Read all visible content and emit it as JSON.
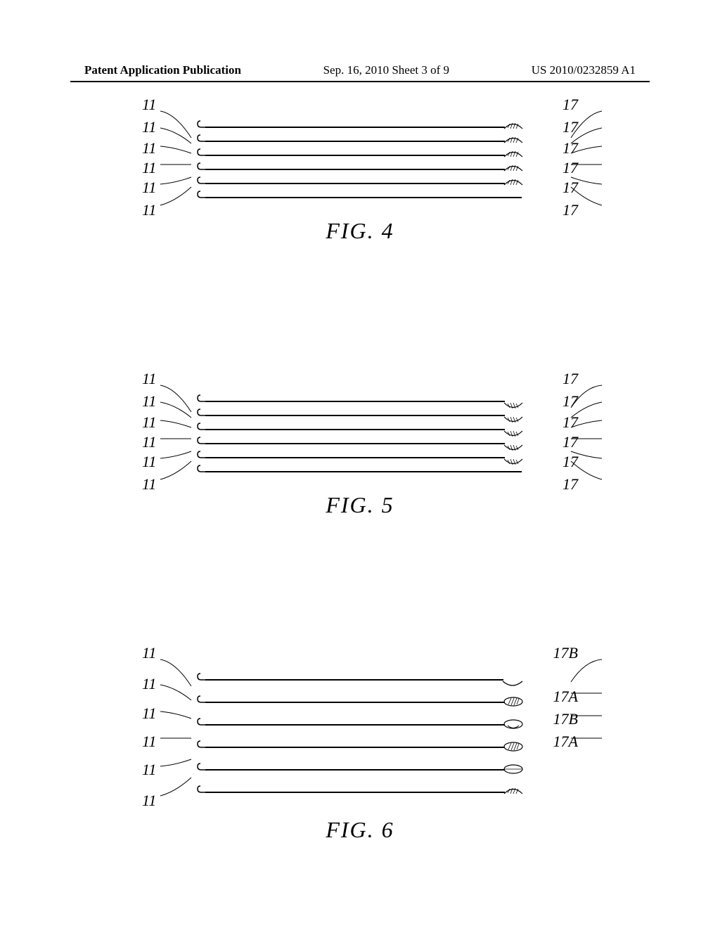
{
  "header": {
    "left": "Patent Application Publication",
    "mid": "Sep. 16, 2010  Sheet 3 of 9",
    "right": "US 2010/0232859 A1"
  },
  "figures": [
    {
      "id": "fig4",
      "caption": "FIG. 4",
      "rows": [
        {
          "left_label": "11",
          "right_label": "17",
          "left_end": "hook-up",
          "right_end": "hatch-up",
          "left_lead": "down-deep",
          "right_lead": "down-deep"
        },
        {
          "left_label": "11",
          "right_label": "17",
          "left_end": "hook-up",
          "right_end": "hatch-up",
          "left_lead": "down",
          "right_lead": "down"
        },
        {
          "left_label": "11",
          "right_label": "17",
          "left_end": "hook-up",
          "right_end": "hatch-up",
          "left_lead": "down-short",
          "right_lead": "down-short"
        },
        {
          "left_label": "11",
          "right_label": "17",
          "left_end": "hook-up",
          "right_end": "hatch-up",
          "left_lead": "flat",
          "right_lead": "flat"
        },
        {
          "left_label": "11",
          "right_label": "17",
          "left_end": "hook-up",
          "right_end": "hatch-up",
          "left_lead": "up-short",
          "right_lead": "up-short"
        },
        {
          "left_label": "11",
          "right_label": "17",
          "left_end": "hook-up",
          "right_end": "none",
          "left_lead": "up",
          "right_lead": "up"
        }
      ],
      "spacing": 20
    },
    {
      "id": "fig5",
      "caption": "FIG. 5",
      "rows": [
        {
          "left_label": "11",
          "right_label": "17",
          "left_end": "hook-up",
          "right_end": "hatch-down",
          "left_lead": "down-deep",
          "right_lead": "down-deep-r"
        },
        {
          "left_label": "11",
          "right_label": "17",
          "left_end": "hook-up",
          "right_end": "hatch-down",
          "left_lead": "down",
          "right_lead": "down"
        },
        {
          "left_label": "11",
          "right_label": "17",
          "left_end": "hook-up",
          "right_end": "hatch-down",
          "left_lead": "down-short",
          "right_lead": "down-short"
        },
        {
          "left_label": "11",
          "right_label": "17",
          "left_end": "hook-up",
          "right_end": "hatch-down",
          "left_lead": "flat",
          "right_lead": "flat"
        },
        {
          "left_label": "11",
          "right_label": "17",
          "left_end": "hook-up",
          "right_end": "hatch-down",
          "left_lead": "up-short",
          "right_lead": "up-short"
        },
        {
          "left_label": "11",
          "right_label": "17",
          "left_end": "hook-up",
          "right_end": "none",
          "left_lead": "up",
          "right_lead": "up"
        }
      ],
      "spacing": 20
    },
    {
      "id": "fig6",
      "caption": "FIG. 6",
      "rows": [
        {
          "left_label": "11",
          "right_label": "17B",
          "left_end": "hook-up",
          "right_end": "cup-down",
          "left_lead": "down-deep",
          "right_lead": "down-deep-r"
        },
        {
          "left_label": "11",
          "right_label": "17A",
          "left_end": "hook-up",
          "right_end": "ellipse-hatch",
          "left_lead": "down",
          "right_lead": "flat"
        },
        {
          "left_label": "11",
          "right_label": "17B",
          "left_end": "hook-up",
          "right_end": "ellipse-cup",
          "left_lead": "down-short",
          "right_lead": "flat"
        },
        {
          "left_label": "11",
          "right_label": "17A",
          "left_end": "hook-up",
          "right_end": "ellipse-hatch",
          "left_lead": "flat",
          "right_lead": "flat"
        },
        {
          "left_label": "11",
          "right_label": "",
          "left_end": "hook-up",
          "right_end": "ellipse-plain",
          "left_lead": "up-short",
          "right_lead": "none"
        },
        {
          "left_label": "11",
          "right_label": "",
          "left_end": "hook-up",
          "right_end": "hatch-up",
          "left_lead": "up",
          "right_lead": "none"
        }
      ],
      "spacing": 32
    }
  ],
  "colors": {
    "stroke": "#000000",
    "bg": "#ffffff"
  }
}
